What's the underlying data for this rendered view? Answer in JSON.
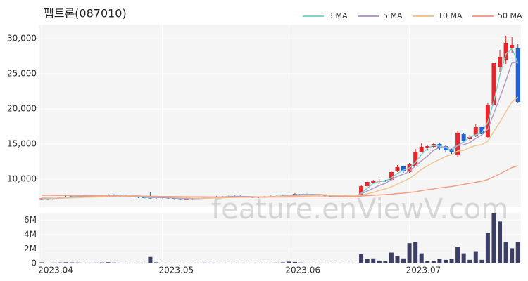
{
  "chart_data": [
    {
      "type": "candlestick",
      "title": "펩트론(087010)",
      "watermark": "feature.enViewV.com",
      "up_color": "#e8262b",
      "down_color": "#1f63d6",
      "grid": true,
      "legend": "top-right",
      "ylim": [
        6000,
        32000
      ],
      "yticks": [
        {
          "value": 10000,
          "label": "10,000"
        },
        {
          "value": 15000,
          "label": "15,000"
        },
        {
          "value": 20000,
          "label": "20,000"
        },
        {
          "value": 25000,
          "label": "25,000"
        },
        {
          "value": 30000,
          "label": "30,000"
        }
      ],
      "categories": [
        "2023.04",
        null,
        null,
        null,
        null,
        null,
        null,
        null,
        null,
        null,
        null,
        null,
        null,
        null,
        null,
        null,
        null,
        null,
        null,
        null,
        "2023.05",
        null,
        null,
        null,
        null,
        null,
        null,
        null,
        null,
        null,
        null,
        null,
        null,
        null,
        null,
        null,
        null,
        null,
        null,
        null,
        null,
        "2023.06",
        null,
        null,
        null,
        null,
        null,
        null,
        null,
        null,
        null,
        null,
        null,
        null,
        null,
        null,
        null,
        null,
        null,
        null,
        null,
        "2023.07",
        null,
        null,
        null,
        null,
        null,
        null,
        null,
        null,
        null,
        null,
        null,
        null,
        null,
        null,
        null,
        null,
        null,
        null
      ],
      "open": [
        7200,
        7250,
        7200,
        7300,
        7400,
        7500,
        7600,
        7650,
        7600,
        7550,
        7500,
        7600,
        7700,
        7750,
        7700,
        7650,
        7500,
        7400,
        7350,
        7300,
        7450,
        7350,
        7300,
        7250,
        7200,
        7200,
        7250,
        7300,
        7400,
        7450,
        7500,
        7500,
        7550,
        7600,
        7500,
        7450,
        7400,
        7450,
        7500,
        7550,
        7600,
        7650,
        7750,
        7900,
        7850,
        7800,
        7750,
        7700,
        7650,
        7600,
        7550,
        7500,
        7500,
        7600,
        9000,
        9500,
        9600,
        9800,
        9900,
        11200,
        11800,
        11000,
        11900,
        13900,
        14400,
        14600,
        15000,
        14700,
        14300,
        13400,
        16400,
        15700,
        16200,
        17400,
        16000,
        20600,
        26000,
        27000,
        28700,
        28600
      ],
      "high": [
        7350,
        7350,
        7400,
        7500,
        7600,
        7700,
        7750,
        7750,
        7700,
        7650,
        7700,
        7800,
        7850,
        7850,
        7800,
        7750,
        7600,
        7500,
        8200,
        7550,
        7550,
        7450,
        7400,
        7350,
        7300,
        7350,
        7400,
        7500,
        7550,
        7600,
        7600,
        7650,
        7700,
        7700,
        7600,
        7550,
        7550,
        7600,
        7650,
        7700,
        7750,
        7850,
        8000,
        8000,
        7950,
        7900,
        7850,
        7800,
        7750,
        7700,
        7650,
        7600,
        7650,
        9100,
        9800,
        9900,
        10000,
        9900,
        11200,
        12000,
        11900,
        12300,
        14300,
        15100,
        14900,
        15200,
        15100,
        14800,
        14400,
        16900,
        16600,
        16300,
        17800,
        17600,
        20800,
        26800,
        28400,
        30400,
        30200,
        29200
      ],
      "low": [
        7100,
        7100,
        7100,
        7200,
        7300,
        7400,
        7500,
        7500,
        7450,
        7400,
        7400,
        7500,
        7600,
        7600,
        7550,
        7400,
        7300,
        7250,
        7200,
        7200,
        7250,
        7200,
        7150,
        7100,
        7100,
        7100,
        7150,
        7200,
        7300,
        7350,
        7400,
        7400,
        7450,
        7400,
        7350,
        7300,
        7300,
        7350,
        7400,
        7450,
        7500,
        7550,
        7650,
        7750,
        7700,
        7650,
        7600,
        7550,
        7500,
        7450,
        7400,
        7400,
        7400,
        7500,
        8900,
        9400,
        9500,
        9600,
        9800,
        11000,
        10900,
        10900,
        11800,
        13800,
        14200,
        14400,
        14200,
        13900,
        13600,
        13200,
        15200,
        15500,
        16000,
        16200,
        15800,
        20400,
        25200,
        26400,
        28000,
        20800
      ],
      "close": [
        7250,
        7200,
        7300,
        7400,
        7500,
        7600,
        7650,
        7600,
        7550,
        7500,
        7600,
        7700,
        7750,
        7700,
        7650,
        7500,
        7400,
        7350,
        7300,
        7450,
        7350,
        7300,
        7250,
        7200,
        7200,
        7250,
        7300,
        7400,
        7450,
        7500,
        7500,
        7550,
        7600,
        7500,
        7450,
        7400,
        7450,
        7500,
        7550,
        7600,
        7650,
        7750,
        7900,
        7850,
        7800,
        7750,
        7700,
        7650,
        7600,
        7550,
        7500,
        7500,
        7550,
        9000,
        9600,
        9700,
        9800,
        9700,
        11000,
        11700,
        11100,
        12100,
        13900,
        14600,
        14700,
        15000,
        14400,
        14100,
        13800,
        16600,
        15400,
        16000,
        17400,
        16400,
        20500,
        26500,
        27400,
        29400,
        29100,
        21000
      ],
      "series": [
        {
          "name": "3 MA",
          "color": "#7fd3cf",
          "values": [
            7250,
            7230,
            7250,
            7300,
            7400,
            7500,
            7580,
            7620,
            7600,
            7550,
            7550,
            7600,
            7680,
            7720,
            7700,
            7620,
            7520,
            7420,
            7350,
            7370,
            7370,
            7370,
            7300,
            7250,
            7220,
            7220,
            7250,
            7320,
            7380,
            7450,
            7480,
            7520,
            7550,
            7550,
            7520,
            7450,
            7430,
            7450,
            7500,
            7550,
            7600,
            7670,
            7770,
            7830,
            7850,
            7800,
            7750,
            7700,
            7650,
            7600,
            7550,
            7520,
            7520,
            8000,
            8700,
            9400,
            9700,
            9700,
            10200,
            10800,
            11300,
            11600,
            12400,
            13500,
            14400,
            14800,
            14700,
            14500,
            14100,
            14800,
            15300,
            16000,
            16300,
            16600,
            18100,
            21100,
            24800,
            27800,
            28600,
            26500
          ]
        },
        {
          "name": "5 MA",
          "color": "#b29cc8",
          "values": [
            7300,
            7280,
            7260,
            7280,
            7330,
            7400,
            7490,
            7570,
            7580,
            7580,
            7580,
            7590,
            7620,
            7650,
            7680,
            7660,
            7600,
            7520,
            7440,
            7400,
            7370,
            7350,
            7330,
            7310,
            7260,
            7240,
            7240,
            7270,
            7320,
            7380,
            7430,
            7480,
            7520,
            7530,
            7520,
            7500,
            7480,
            7470,
            7470,
            7500,
            7550,
            7610,
            7690,
            7750,
            7790,
            7810,
            7800,
            7750,
            7700,
            7650,
            7600,
            7560,
            7540,
            7900,
            8300,
            8700,
            9100,
            9400,
            9900,
            10400,
            10700,
            11100,
            11900,
            12600,
            13300,
            14100,
            14500,
            14600,
            14400,
            14800,
            14900,
            15200,
            15800,
            16300,
            17100,
            19400,
            21600,
            24000,
            26600,
            26700
          ]
        },
        {
          "name": "10 MA",
          "color": "#f0c590",
          "values": [
            7350,
            7330,
            7310,
            7300,
            7310,
            7330,
            7370,
            7410,
            7440,
            7460,
            7490,
            7530,
            7570,
            7600,
            7620,
            7620,
            7600,
            7570,
            7540,
            7530,
            7500,
            7470,
            7430,
            7390,
            7350,
            7310,
            7290,
            7290,
            7300,
            7320,
            7340,
            7370,
            7400,
            7430,
            7450,
            7470,
            7480,
            7490,
            7500,
            7510,
            7530,
            7550,
            7580,
            7610,
            7650,
            7680,
            7700,
            7720,
            7720,
            7710,
            7700,
            7680,
            7650,
            7700,
            7900,
            8100,
            8400,
            8600,
            8900,
            9300,
            9700,
            10100,
            10700,
            11400,
            11900,
            12400,
            12800,
            13200,
            13500,
            14000,
            14100,
            14500,
            14800,
            14900,
            15400,
            16800,
            18100,
            19600,
            21000,
            21700
          ]
        },
        {
          "name": "50 MA",
          "color": "#f3a08a",
          "values": [
            7700,
            7700,
            7690,
            7680,
            7680,
            7670,
            7660,
            7650,
            7640,
            7630,
            7620,
            7610,
            7600,
            7600,
            7590,
            7580,
            7570,
            7560,
            7550,
            7540,
            7530,
            7520,
            7510,
            7500,
            7490,
            7480,
            7470,
            7470,
            7460,
            7460,
            7450,
            7450,
            7450,
            7450,
            7440,
            7440,
            7440,
            7440,
            7450,
            7450,
            7450,
            7460,
            7460,
            7470,
            7470,
            7480,
            7480,
            7490,
            7490,
            7500,
            7500,
            7510,
            7520,
            7600,
            7650,
            7700,
            7750,
            7800,
            7850,
            7950,
            8000,
            8100,
            8200,
            8350,
            8500,
            8600,
            8750,
            8850,
            8950,
            9100,
            9250,
            9400,
            9550,
            9700,
            9950,
            10350,
            10750,
            11200,
            11650,
            11900
          ]
        }
      ]
    },
    {
      "type": "bar",
      "color": "#3c3e63",
      "grid": true,
      "ylim": [
        0,
        7000000
      ],
      "yticks": [
        0,
        {
          "value": 2000000,
          "label": "2M"
        },
        {
          "value": 4000000,
          "label": "4M"
        },
        {
          "value": 6000000,
          "label": "6M"
        }
      ],
      "values": [
        150000,
        90000,
        110000,
        130000,
        160000,
        140000,
        120000,
        100000,
        90000,
        110000,
        130000,
        170000,
        120000,
        100000,
        90000,
        80000,
        90000,
        100000,
        900000,
        150000,
        90000,
        80000,
        70000,
        60000,
        70000,
        80000,
        90000,
        110000,
        100000,
        80000,
        70000,
        90000,
        100000,
        80000,
        70000,
        60000,
        80000,
        90000,
        100000,
        110000,
        150000,
        250000,
        200000,
        120000,
        100000,
        90000,
        80000,
        70000,
        60000,
        70000,
        80000,
        70000,
        90000,
        1300000,
        600000,
        700000,
        400000,
        300000,
        1500000,
        1000000,
        700000,
        2800000,
        3000000,
        1400000,
        300000,
        300000,
        600000,
        500000,
        600000,
        2300000,
        1400000,
        500000,
        1600000,
        500000,
        4200000,
        7000000,
        5800000,
        3000000,
        2100000,
        3000000
      ]
    }
  ]
}
